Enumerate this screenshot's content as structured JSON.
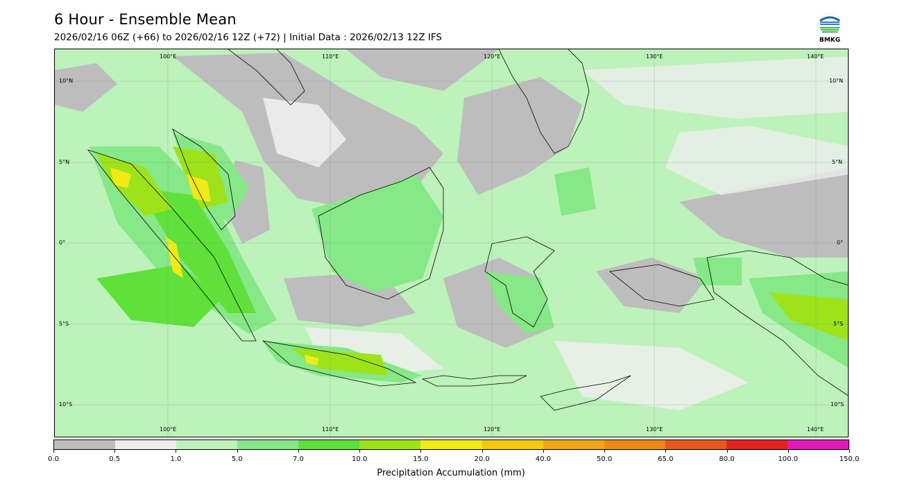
{
  "title": "6 Hour - Ensemble Mean",
  "subtitle": "2026/02/16 06Z (+66) to 2026/02/16 12Z (+72) | Initial Data : 2026/02/13 12Z IFS",
  "logo": {
    "text": "BMKG",
    "icon": "bmkg-logo-icon"
  },
  "map": {
    "lon_labels_top": [
      "100°E",
      "110°E",
      "120°E",
      "130°E",
      "140°E"
    ],
    "lon_labels_bottom": [
      "100°E",
      "110°E",
      "120°E",
      "130°E",
      "140°E"
    ],
    "lat_labels_left": [
      "10°N",
      "5°N",
      "0°",
      "5°S",
      "10°S"
    ],
    "lat_labels_right": [
      "10°N",
      "5°N",
      "0°",
      "5°S",
      "10°S"
    ]
  },
  "colorbar": {
    "label": "Precipitation Accumulation (mm)",
    "ticks": [
      "0.0",
      "0.5",
      "1.0",
      "5.0",
      "7.0",
      "10.0",
      "15.0",
      "20.0",
      "40.0",
      "50.0",
      "65.0",
      "80.0",
      "100.0",
      "150.0"
    ],
    "colors": [
      "#bdbdbd",
      "#eeeeee",
      "#bdf2bb",
      "#86e887",
      "#5fe03a",
      "#9ee21a",
      "#f1ea16",
      "#f4c914",
      "#f0a614",
      "#ee8a14",
      "#e8581a",
      "#e2221e",
      "#e01ab4"
    ]
  }
}
